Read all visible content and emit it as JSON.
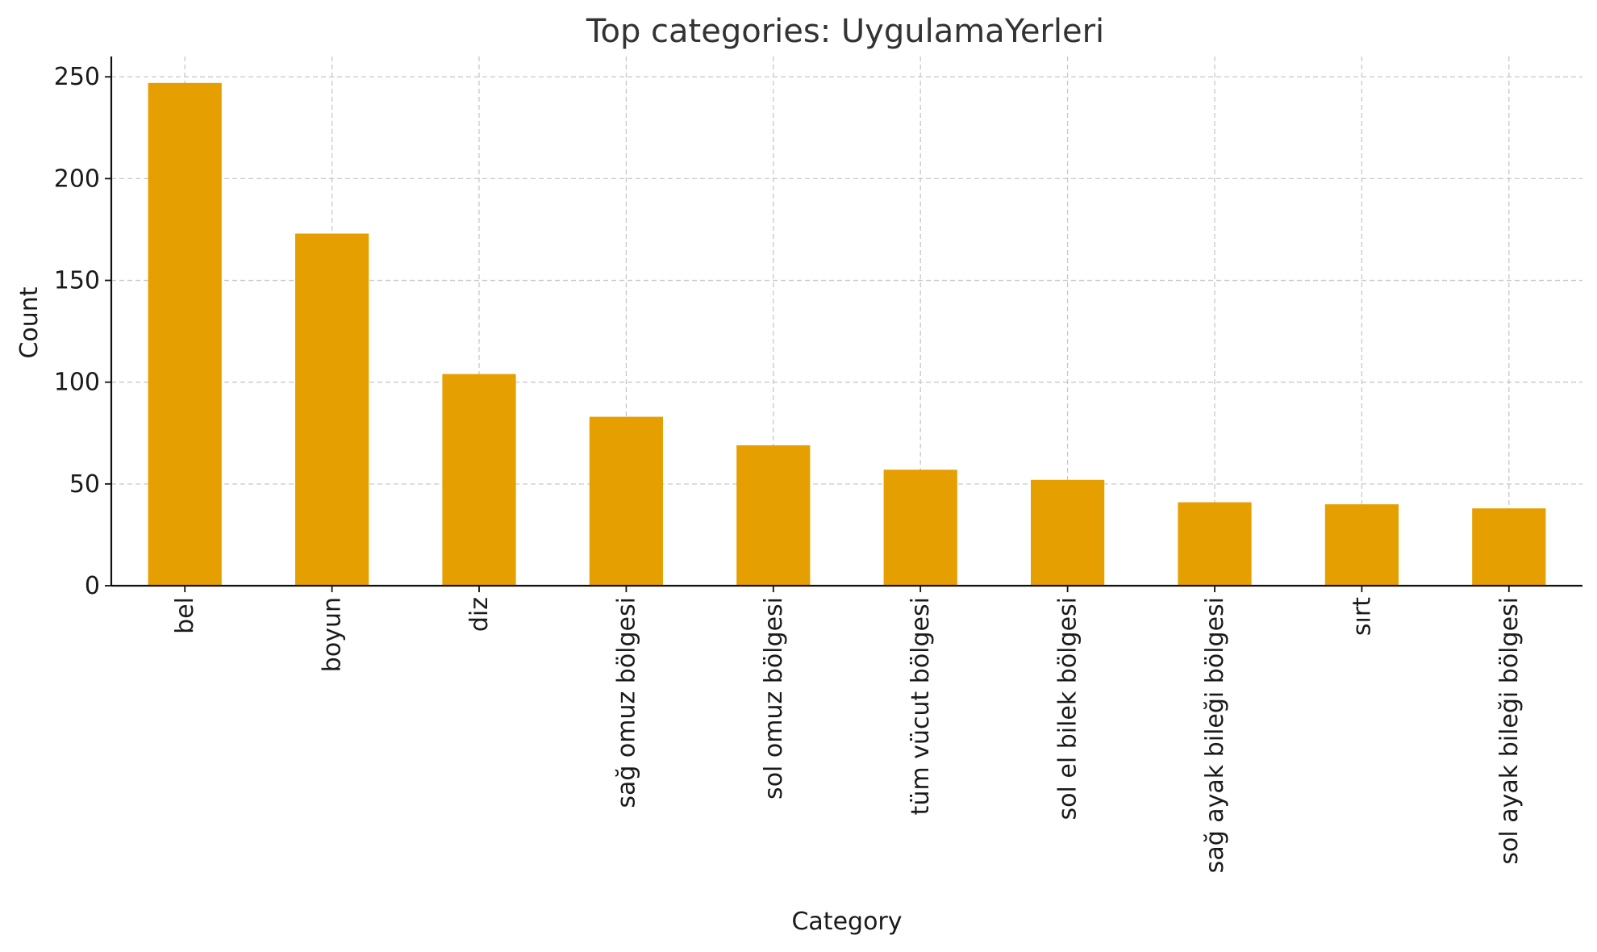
{
  "chart_data": {
    "type": "bar",
    "title": "Top categories: UygulamaYerleri",
    "xlabel": "Category",
    "ylabel": "Count",
    "categories": [
      "bel",
      "boyun",
      "diz",
      "sağ omuz bölgesi",
      "sol omuz bölgesi",
      "tüm vücut bölgesi",
      "sol el bilek bölgesi",
      "sağ ayak bileği bölgesi",
      "sırt",
      "sol ayak bileği bölgesi"
    ],
    "values": [
      247,
      173,
      104,
      83,
      69,
      57,
      52,
      41,
      40,
      38
    ],
    "ylim": [
      0,
      260
    ],
    "yticks": [
      0,
      50,
      100,
      150,
      200,
      250
    ],
    "grid": true,
    "bar_color": "#E69F00"
  }
}
